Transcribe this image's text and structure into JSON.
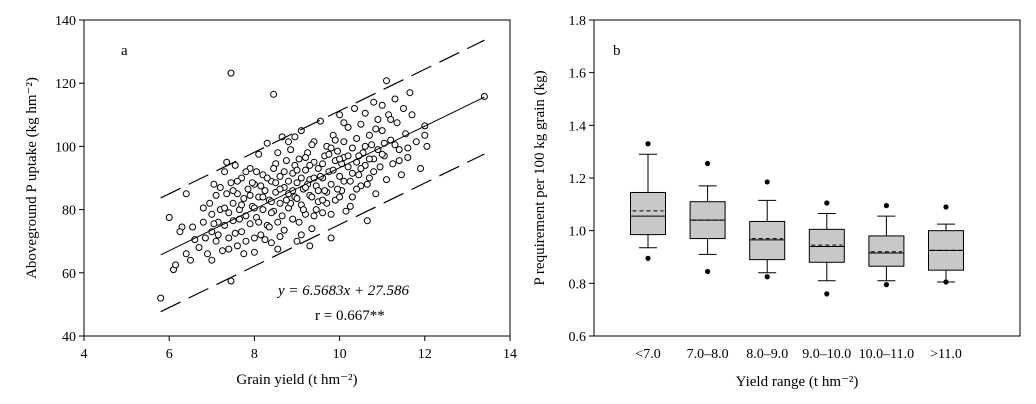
{
  "chart_data": [
    {
      "type": "scatter",
      "panel_label": "a",
      "xlabel": "Grain yield (t hm⁻²)",
      "ylabel": "Aboveground P uptake (kg hm⁻²)",
      "xlim": [
        4,
        14
      ],
      "ylim": [
        40,
        140
      ],
      "xticks": [
        "4",
        "6",
        "8",
        "10",
        "12",
        "14"
      ],
      "yticks": [
        "40",
        "60",
        "80",
        "100",
        "120",
        "140"
      ],
      "regression": {
        "slope": 6.5683,
        "intercept": 27.586,
        "band_offset": 18
      },
      "equation_text": "y = 6.5683x + 27.586",
      "r_text": "r = 0.667**",
      "points": [
        [
          5.8,
          52.0
        ],
        [
          7.45,
          123.2
        ],
        [
          8.45,
          116.5
        ],
        [
          13.4,
          115.8
        ],
        [
          11.1,
          120.8
        ],
        [
          7.45,
          57.4
        ],
        [
          6.0,
          77.5
        ],
        [
          6.1,
          61.0
        ],
        [
          6.15,
          62.5
        ],
        [
          6.3,
          74.5
        ],
        [
          6.4,
          85.0
        ],
        [
          6.4,
          66.0
        ],
        [
          6.5,
          64.0
        ],
        [
          6.55,
          74.5
        ],
        [
          6.7,
          68.0
        ],
        [
          6.8,
          76.0
        ],
        [
          6.85,
          71.0
        ],
        [
          6.9,
          66.0
        ],
        [
          6.95,
          82.0
        ],
        [
          7.0,
          78.5
        ],
        [
          7.0,
          73.0
        ],
        [
          7.05,
          88.0
        ],
        [
          7.1,
          70.0
        ],
        [
          7.1,
          84.5
        ],
        [
          7.15,
          76.0
        ],
        [
          7.2,
          80.0
        ],
        [
          7.25,
          67.0
        ],
        [
          7.3,
          92.0
        ],
        [
          7.3,
          75.0
        ],
        [
          7.35,
          85.0
        ],
        [
          7.4,
          79.0
        ],
        [
          7.4,
          71.0
        ],
        [
          7.45,
          88.5
        ],
        [
          7.5,
          82.0
        ],
        [
          7.5,
          76.5
        ],
        [
          7.55,
          94.0
        ],
        [
          7.6,
          68.5
        ],
        [
          7.6,
          85.0
        ],
        [
          7.65,
          80.0
        ],
        [
          7.7,
          73.0
        ],
        [
          7.7,
          90.0
        ],
        [
          7.75,
          83.5
        ],
        [
          7.8,
          78.0
        ],
        [
          7.8,
          70.0
        ],
        [
          7.85,
          86.5
        ],
        [
          7.9,
          75.5
        ],
        [
          7.9,
          93.0
        ],
        [
          7.95,
          81.0
        ],
        [
          8.0,
          66.5
        ],
        [
          8.0,
          88.0
        ],
        [
          8.05,
          77.5
        ],
        [
          8.1,
          84.0
        ],
        [
          8.1,
          97.5
        ],
        [
          8.15,
          72.0
        ],
        [
          8.2,
          91.0
        ],
        [
          8.2,
          80.0
        ],
        [
          8.25,
          86.0
        ],
        [
          8.3,
          75.0
        ],
        [
          8.3,
          101.0
        ],
        [
          8.35,
          83.0
        ],
        [
          8.4,
          89.0
        ],
        [
          8.4,
          69.5
        ],
        [
          8.45,
          79.5
        ],
        [
          8.5,
          94.5
        ],
        [
          8.5,
          85.5
        ],
        [
          8.55,
          76.0
        ],
        [
          8.6,
          90.5
        ],
        [
          8.6,
          82.0
        ],
        [
          8.65,
          103.0
        ],
        [
          8.7,
          87.0
        ],
        [
          8.7,
          73.5
        ],
        [
          8.75,
          95.5
        ],
        [
          8.8,
          80.5
        ],
        [
          8.8,
          85.0
        ],
        [
          8.85,
          99.0
        ],
        [
          8.9,
          77.0
        ],
        [
          8.9,
          91.5
        ],
        [
          8.95,
          84.0
        ],
        [
          9.0,
          88.5
        ],
        [
          9.0,
          70.0
        ],
        [
          9.05,
          96.0
        ],
        [
          9.1,
          81.5
        ],
        [
          9.1,
          105.0
        ],
        [
          9.15,
          86.5
        ],
        [
          9.2,
          92.5
        ],
        [
          9.2,
          78.5
        ],
        [
          9.25,
          98.0
        ],
        [
          9.3,
          84.5
        ],
        [
          9.3,
          89.5
        ],
        [
          9.35,
          74.0
        ],
        [
          9.4,
          95.0
        ],
        [
          9.4,
          101.5
        ],
        [
          9.45,
          87.5
        ],
        [
          9.5,
          82.5
        ],
        [
          9.5,
          93.0
        ],
        [
          9.55,
          108.0
        ],
        [
          9.6,
          90.0
        ],
        [
          9.6,
          79.0
        ],
        [
          9.65,
          97.0
        ],
        [
          9.7,
          85.5
        ],
        [
          9.7,
          100.0
        ],
        [
          9.75,
          92.0
        ],
        [
          9.8,
          88.0
        ],
        [
          9.8,
          71.0
        ],
        [
          9.85,
          103.5
        ],
        [
          9.9,
          95.5
        ],
        [
          9.9,
          83.0
        ],
        [
          9.95,
          98.5
        ],
        [
          10.0,
          90.5
        ],
        [
          10.0,
          110.0
        ],
        [
          10.05,
          86.0
        ],
        [
          10.1,
          96.5
        ],
        [
          10.1,
          101.5
        ],
        [
          10.15,
          79.5
        ],
        [
          10.2,
          93.5
        ],
        [
          10.2,
          106.0
        ],
        [
          10.25,
          89.0
        ],
        [
          10.3,
          99.5
        ],
        [
          10.3,
          84.0
        ],
        [
          10.35,
          112.0
        ],
        [
          10.4,
          95.0
        ],
        [
          10.4,
          102.5
        ],
        [
          10.45,
          91.0
        ],
        [
          10.5,
          107.0
        ],
        [
          10.5,
          87.5
        ],
        [
          10.55,
          98.0
        ],
        [
          10.6,
          110.5
        ],
        [
          10.6,
          94.0
        ],
        [
          10.65,
          76.5
        ],
        [
          10.7,
          103.5
        ],
        [
          10.7,
          90.0
        ],
        [
          10.75,
          100.5
        ],
        [
          10.8,
          114.0
        ],
        [
          10.8,
          96.0
        ],
        [
          10.85,
          85.0
        ],
        [
          10.9,
          108.5
        ],
        [
          10.9,
          99.0
        ],
        [
          10.95,
          93.5
        ],
        [
          11.0,
          105.0
        ],
        [
          11.0,
          113.0
        ],
        [
          11.05,
          97.0
        ],
        [
          11.1,
          89.5
        ],
        [
          11.15,
          110.0
        ],
        [
          11.2,
          102.0
        ],
        [
          11.25,
          94.5
        ],
        [
          11.3,
          115.0
        ],
        [
          11.35,
          107.5
        ],
        [
          11.4,
          99.0
        ],
        [
          11.45,
          91.0
        ],
        [
          11.5,
          112.0
        ],
        [
          11.55,
          104.0
        ],
        [
          11.6,
          96.5
        ],
        [
          11.7,
          110.0
        ],
        [
          11.8,
          101.5
        ],
        [
          11.9,
          93.0
        ],
        [
          12.0,
          106.5
        ],
        [
          12.0,
          103.5
        ],
        [
          11.65,
          117.0
        ],
        [
          6.25,
          73.0
        ],
        [
          6.6,
          70.5
        ],
        [
          7.0,
          64.0
        ],
        [
          7.2,
          87.0
        ],
        [
          7.55,
          72.5
        ],
        [
          7.75,
          66.0
        ],
        [
          8.05,
          92.0
        ],
        [
          8.25,
          70.5
        ],
        [
          8.45,
          93.0
        ],
        [
          8.65,
          78.0
        ],
        [
          8.85,
          82.0
        ],
        [
          9.05,
          76.0
        ],
        [
          9.25,
          88.0
        ],
        [
          9.45,
          80.0
        ],
        [
          9.65,
          86.0
        ],
        [
          9.85,
          92.5
        ],
        [
          10.05,
          94.5
        ],
        [
          10.25,
          81.0
        ],
        [
          10.45,
          97.0
        ],
        [
          10.65,
          88.0
        ],
        [
          10.85,
          105.5
        ],
        [
          11.05,
          101.0
        ],
        [
          8.15,
          87.5
        ],
        [
          8.35,
          74.5
        ],
        [
          8.55,
          98.0
        ],
        [
          8.75,
          83.0
        ],
        [
          8.95,
          94.0
        ],
        [
          9.15,
          80.0
        ],
        [
          9.35,
          84.0
        ],
        [
          9.55,
          90.5
        ],
        [
          9.75,
          97.5
        ],
        [
          9.95,
          86.5
        ],
        [
          7.3,
          80.5
        ],
        [
          7.5,
          86.0
        ],
        [
          7.7,
          81.5
        ],
        [
          7.9,
          84.5
        ],
        [
          8.1,
          76.0
        ],
        [
          8.3,
          90.0
        ],
        [
          8.5,
          88.5
        ],
        [
          8.7,
          92.0
        ],
        [
          8.9,
          86.0
        ],
        [
          9.1,
          90.0
        ],
        [
          9.3,
          94.0
        ],
        [
          9.5,
          86.0
        ],
        [
          9.7,
          82.0
        ],
        [
          9.9,
          102.0
        ],
        [
          10.1,
          89.0
        ],
        [
          10.3,
          91.5
        ],
        [
          6.8,
          80.5
        ],
        [
          7.05,
          75.5
        ],
        [
          7.35,
          95.0
        ],
        [
          7.65,
          77.0
        ],
        [
          7.95,
          88.5
        ],
        [
          8.4,
          82.5
        ],
        [
          8.6,
          71.5
        ],
        [
          8.8,
          101.5
        ],
        [
          9.0,
          83.5
        ],
        [
          9.2,
          87.0
        ],
        [
          9.4,
          78.0
        ],
        [
          9.6,
          94.5
        ],
        [
          9.8,
          99.5
        ],
        [
          10.0,
          84.0
        ],
        [
          10.2,
          97.0
        ],
        [
          10.4,
          86.5
        ],
        [
          10.6,
          100.0
        ],
        [
          10.8,
          92.0
        ],
        [
          11.0,
          97.5
        ],
        [
          11.2,
          108.5
        ],
        [
          11.4,
          95.5
        ],
        [
          8.0,
          80.5
        ],
        [
          8.2,
          84.0
        ],
        [
          8.4,
          79.0
        ],
        [
          8.6,
          86.5
        ],
        [
          8.8,
          89.0
        ],
        [
          9.0,
          92.5
        ],
        [
          9.2,
          96.5
        ],
        [
          9.4,
          90.0
        ],
        [
          9.6,
          83.0
        ],
        [
          9.8,
          78.5
        ],
        [
          10.0,
          96.0
        ],
        [
          7.15,
          72.0
        ],
        [
          7.4,
          67.5
        ],
        [
          7.6,
          89.0
        ],
        [
          7.8,
          92.0
        ],
        [
          8.0,
          71.0
        ],
        [
          8.55,
          67.5
        ],
        [
          9.1,
          72.0
        ],
        [
          9.3,
          68.5
        ],
        [
          10.1,
          107.5
        ],
        [
          10.5,
          93.0
        ],
        [
          10.7,
          96.0
        ],
        [
          11.3,
          100.5
        ],
        [
          11.6,
          99.5
        ],
        [
          12.05,
          100.0
        ],
        [
          8.95,
          103.0
        ],
        [
          9.35,
          100.5
        ]
      ]
    },
    {
      "type": "box",
      "panel_label": "b",
      "xlabel": "Yield range (t hm⁻²)",
      "ylabel": "P requirement per 100 kg grain (kg)",
      "ylim": [
        0.6,
        1.8
      ],
      "yticks": [
        "0.6",
        "0.8",
        "1.0",
        "1.2",
        "1.4",
        "1.6",
        "1.8"
      ],
      "categories": [
        "<7.0",
        "7.0–8.0",
        "8.0–9.0",
        "9.0–10.0",
        "10.0–11.0",
        ">11.0"
      ],
      "boxes": [
        {
          "whisker_low": 0.935,
          "q1": 0.985,
          "median": 1.055,
          "mean": 1.075,
          "q3": 1.145,
          "whisker_high": 1.29,
          "outliers": [
            0.895,
            1.33
          ]
        },
        {
          "whisker_low": 0.91,
          "q1": 0.97,
          "median": 1.04,
          "mean": 1.04,
          "q3": 1.11,
          "whisker_high": 1.17,
          "outliers": [
            0.845,
            1.255
          ]
        },
        {
          "whisker_low": 0.84,
          "q1": 0.89,
          "median": 0.965,
          "mean": 0.97,
          "q3": 1.035,
          "whisker_high": 1.115,
          "outliers": [
            0.825,
            1.185
          ]
        },
        {
          "whisker_low": 0.81,
          "q1": 0.88,
          "median": 0.94,
          "mean": 0.945,
          "q3": 1.005,
          "whisker_high": 1.065,
          "outliers": [
            0.76,
            1.105
          ]
        },
        {
          "whisker_low": 0.81,
          "q1": 0.865,
          "median": 0.915,
          "mean": 0.92,
          "q3": 0.98,
          "whisker_high": 1.055,
          "outliers": [
            0.795,
            1.095
          ]
        },
        {
          "whisker_low": 0.805,
          "q1": 0.85,
          "median": 0.925,
          "mean": 0.925,
          "q3": 1.0,
          "whisker_high": 1.025,
          "outliers": [
            0.805,
            1.09
          ]
        }
      ]
    }
  ]
}
